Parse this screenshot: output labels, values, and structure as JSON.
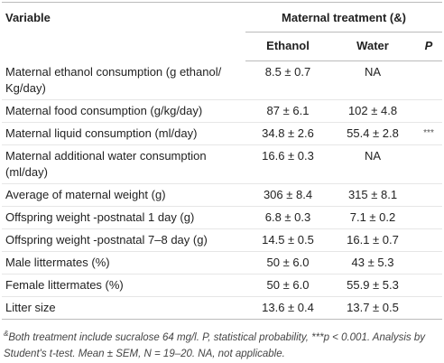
{
  "table": {
    "header": {
      "variable": "Variable",
      "group": "Maternal treatment (&)",
      "columns": [
        "Ethanol",
        "Water",
        "P"
      ]
    },
    "rows": [
      {
        "variable": "Maternal ethanol consumption (g ethanol/ Kg/day)",
        "ethanol": "8.5 ± 0.7",
        "water": "NA"
      },
      {
        "variable": "Maternal food consumption (g/kg/day)",
        "ethanol": "87 ± 6.1",
        "water": "102 ± 4.8"
      },
      {
        "variable": "Maternal liquid consumption (ml/day)",
        "ethanol": "34.8 ± 2.6",
        "water": "55.4 ± 2.8",
        "p": "***"
      },
      {
        "variable": "Maternal additional water consumption (ml/day)",
        "ethanol": "16.6 ± 0.3",
        "water": "NA"
      },
      {
        "variable": "Average of maternal weight (g)",
        "ethanol": "306 ± 8.4",
        "water": "315 ± 8.1"
      },
      {
        "variable": "Offspring weight -postnatal 1 day (g)",
        "ethanol": "6.8 ± 0.3",
        "water": "7.1 ± 0.2"
      },
      {
        "variable": "Offspring weight -postnatal 7–8 day (g)",
        "ethanol": "14.5 ± 0.5",
        "water": "16.1 ± 0.7"
      },
      {
        "variable": "Male littermates (%)",
        "ethanol": "50 ± 6.0",
        "water": "43 ± 5.3"
      },
      {
        "variable": "Female littermates (%)",
        "ethanol": "50 ± 6.0",
        "water": "55.9 ± 5.3"
      },
      {
        "variable": "Litter size",
        "ethanol": "13.6 ± 0.4",
        "water": "13.7 ± 0.5"
      }
    ]
  },
  "footnote": {
    "marker": "&",
    "text": "Both treatment include sucralose 64 mg/l. P, statistical probability, ***p < 0.001. Analysis by Student's t-test. Mean ± SEM, N = 19–20. NA, not applicable."
  }
}
